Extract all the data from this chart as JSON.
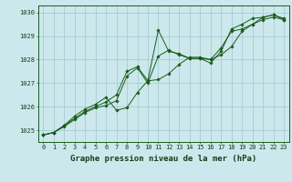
{
  "xlabel": "Graphe pression niveau de la mer (hPa)",
  "bg_color": "#cce8ec",
  "grid_color": "#9dc8d0",
  "line_color": "#1a5c1a",
  "xlim": [
    -0.5,
    23.5
  ],
  "ylim": [
    1024.5,
    1030.3
  ],
  "yticks": [
    1025,
    1026,
    1027,
    1028,
    1029,
    1030
  ],
  "xticks": [
    0,
    1,
    2,
    3,
    4,
    5,
    6,
    7,
    8,
    9,
    10,
    11,
    12,
    13,
    14,
    15,
    16,
    17,
    18,
    19,
    20,
    21,
    22,
    23
  ],
  "series1_x": [
    0,
    1,
    2,
    3,
    4,
    5,
    6,
    7,
    8,
    9,
    10,
    11,
    12,
    13,
    14,
    15,
    16,
    17,
    18,
    19,
    20,
    21,
    22,
    23
  ],
  "series1_y": [
    1024.8,
    1024.9,
    1025.2,
    1025.5,
    1025.8,
    1026.0,
    1026.2,
    1026.5,
    1027.5,
    1027.7,
    1027.1,
    1029.25,
    1028.35,
    1028.25,
    1028.05,
    1028.05,
    1027.85,
    1028.35,
    1029.3,
    1029.5,
    1029.75,
    1029.8,
    1029.9,
    1029.75
  ],
  "series2_x": [
    0,
    1,
    2,
    3,
    4,
    5,
    6,
    7,
    8,
    9,
    10,
    11,
    12,
    13,
    14,
    15,
    16,
    17,
    18,
    19,
    20,
    21,
    22,
    23
  ],
  "series2_y": [
    1024.8,
    1024.9,
    1025.2,
    1025.6,
    1025.9,
    1026.1,
    1026.4,
    1025.85,
    1025.95,
    1026.6,
    1027.1,
    1027.15,
    1027.4,
    1027.8,
    1028.1,
    1028.1,
    1028.0,
    1028.2,
    1028.55,
    1029.2,
    1029.5,
    1029.8,
    1029.9,
    1029.7
  ],
  "series3_x": [
    0,
    1,
    2,
    3,
    4,
    5,
    6,
    7,
    8,
    9,
    10,
    11,
    12,
    13,
    14,
    15,
    16,
    17,
    18,
    19,
    20,
    21,
    22,
    23
  ],
  "series3_y": [
    1024.8,
    1024.9,
    1025.15,
    1025.45,
    1025.75,
    1025.95,
    1026.05,
    1026.25,
    1027.3,
    1027.65,
    1027.0,
    1028.15,
    1028.4,
    1028.2,
    1028.05,
    1028.05,
    1028.0,
    1028.5,
    1029.2,
    1029.3,
    1029.5,
    1029.7,
    1029.8,
    1029.7
  ],
  "xlabel_fontsize": 6.5,
  "tick_fontsize": 5.0,
  "marker": "D",
  "markersize": 1.8,
  "linewidth": 0.7
}
